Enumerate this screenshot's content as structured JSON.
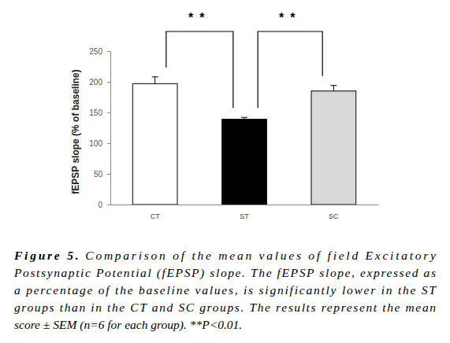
{
  "chart_data": {
    "type": "bar",
    "y_label": "fEPSP slope (% of baseline)",
    "categories": [
      "CT",
      "ST",
      "SC"
    ],
    "values": [
      197,
      139,
      185
    ],
    "errors": [
      11,
      3,
      9
    ],
    "colors": [
      "#ffffff",
      "#000000",
      "#d9d9d9"
    ],
    "ylim": [
      0,
      250
    ],
    "yticks": [
      0,
      50,
      100,
      150,
      200,
      250
    ],
    "grid": false,
    "annotations": [
      {
        "text": "**",
        "from": "CT",
        "to": "ST"
      },
      {
        "text": "**",
        "from": "ST",
        "to": "SC"
      }
    ],
    "caption": {
      "label": "Figure 5.",
      "lines": [
        "Comparison of the mean values of field Excitatory",
        "Postsynaptic Potential (fEPSP) slope. The fEPSP slope, expressed as",
        "a percentage of the baseline values, is significantly lower in the ST",
        "groups than in the CT and SC groups. The results represent the mean",
        "score ± SEM (n=6 for each group). **P<0.01."
      ]
    }
  }
}
